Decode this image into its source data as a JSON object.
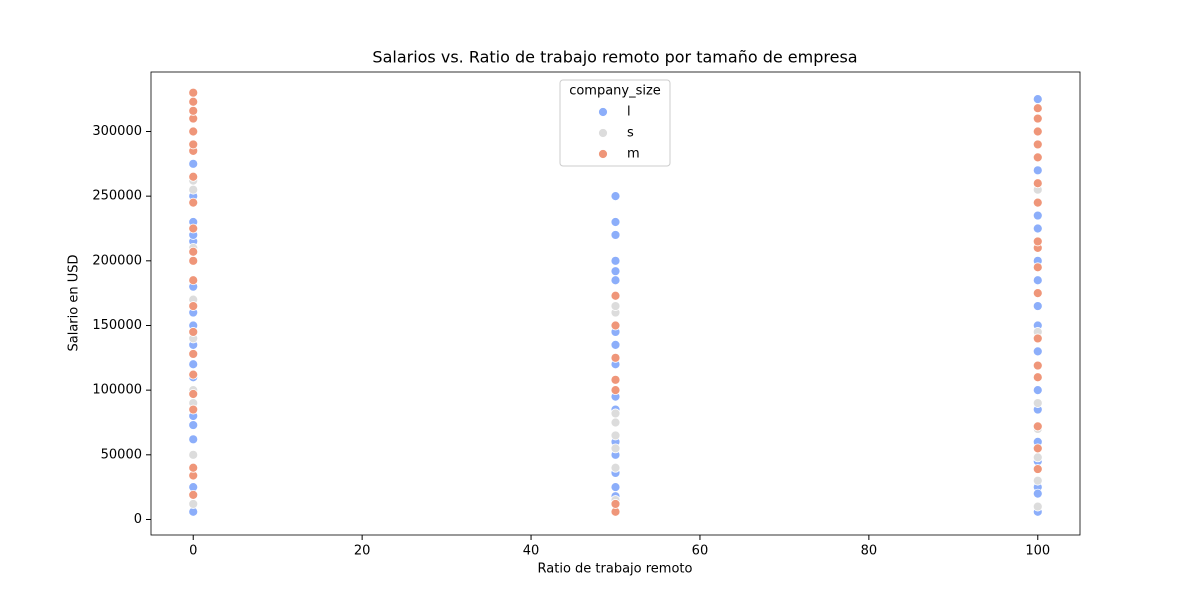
{
  "chart_data": {
    "type": "scatter",
    "title": "Salarios vs. Ratio de trabajo remoto por tamaño de empresa",
    "x_label": "Ratio de trabajo remoto",
    "y_label": "Salario en USD",
    "legend_title": "company_size",
    "legend_position": "upper center",
    "xlim": [
      -5,
      105
    ],
    "xticks": [
      0,
      20,
      40,
      60,
      80,
      100
    ],
    "ylim": [
      -12000,
      346000
    ],
    "yticks": [
      0,
      50000,
      100000,
      150000,
      200000,
      250000,
      300000
    ],
    "grid": false,
    "series": [
      {
        "name": "l",
        "color": "#8caefa",
        "x": [
          0,
          0,
          0,
          0,
          0,
          0,
          0,
          0,
          0,
          0,
          0,
          0,
          0,
          0,
          0,
          0,
          50,
          50,
          50,
          50,
          50,
          50,
          50,
          50,
          50,
          50,
          50,
          50,
          50,
          50,
          50,
          50,
          50,
          100,
          100,
          100,
          100,
          100,
          100,
          100,
          100,
          100,
          100,
          100,
          100,
          100,
          100,
          100,
          100
        ],
        "values": [
          6000,
          25000,
          62000,
          73000,
          80000,
          110000,
          120000,
          135000,
          150000,
          160000,
          180000,
          215000,
          220000,
          230000,
          250000,
          275000,
          250000,
          230000,
          220000,
          200000,
          192000,
          185000,
          150000,
          145000,
          135000,
          120000,
          95000,
          85000,
          60000,
          50000,
          36000,
          25000,
          18000,
          325000,
          270000,
          235000,
          225000,
          200000,
          185000,
          165000,
          150000,
          130000,
          100000,
          85000,
          60000,
          45000,
          25000,
          20000,
          6000
        ]
      },
      {
        "name": "s",
        "color": "#dcdcdc",
        "x": [
          0,
          0,
          0,
          0,
          0,
          0,
          0,
          0,
          0,
          50,
          50,
          50,
          50,
          50,
          50,
          50,
          50,
          100,
          100,
          100,
          100,
          100,
          100,
          100
        ],
        "values": [
          12000,
          50000,
          90000,
          100000,
          140000,
          170000,
          210000,
          255000,
          262000,
          15000,
          40000,
          55000,
          65000,
          75000,
          82000,
          160000,
          165000,
          10000,
          30000,
          48000,
          70000,
          90000,
          145000,
          255000
        ]
      },
      {
        "name": "m",
        "color": "#ef9679",
        "x": [
          0,
          0,
          0,
          0,
          0,
          0,
          0,
          0,
          0,
          0,
          0,
          0,
          0,
          0,
          0,
          0,
          0,
          0,
          0,
          0,
          0,
          0,
          50,
          50,
          50,
          50,
          50,
          50,
          50,
          100,
          100,
          100,
          100,
          100,
          100,
          100,
          100,
          100,
          100,
          100,
          100,
          100,
          100,
          100,
          100,
          100
        ],
        "values": [
          19000,
          34000,
          40000,
          85000,
          97000,
          112000,
          128000,
          145000,
          165000,
          185000,
          200000,
          207000,
          225000,
          245000,
          265000,
          285000,
          290000,
          300000,
          310000,
          316000,
          323000,
          330000,
          6000,
          12000,
          100000,
          108000,
          125000,
          150000,
          173000,
          39000,
          55000,
          72000,
          110000,
          119000,
          140000,
          175000,
          195000,
          210000,
          215000,
          245000,
          260000,
          280000,
          290000,
          300000,
          310000,
          318000
        ]
      }
    ]
  }
}
